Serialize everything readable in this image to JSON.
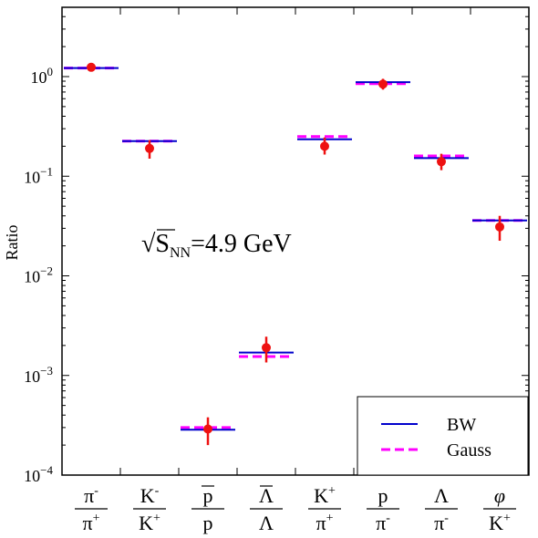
{
  "chart_data": {
    "type": "scatter",
    "title": "",
    "ylabel": "Ratio",
    "xlabel": "",
    "yscale": "log",
    "ylim": [
      0.0001,
      5
    ],
    "yticks": [
      {
        "value": 0.0001,
        "base": "10",
        "exp": "−4"
      },
      {
        "value": 0.001,
        "base": "10",
        "exp": "−3"
      },
      {
        "value": 0.01,
        "base": "10",
        "exp": "−2"
      },
      {
        "value": 0.1,
        "base": "10",
        "exp": "−1"
      },
      {
        "value": 1,
        "base": "10",
        "exp": "0"
      }
    ],
    "categories": [
      {
        "num": "π",
        "num_sup": "-",
        "num_bar": false,
        "den": "π",
        "den_sup": "+",
        "den_bar": false
      },
      {
        "num": "K",
        "num_sup": "-",
        "num_bar": false,
        "den": "K",
        "den_sup": "+",
        "den_bar": false
      },
      {
        "num": "p",
        "num_sup": "",
        "num_bar": true,
        "den": "p",
        "den_sup": "",
        "den_bar": false
      },
      {
        "num": "Λ",
        "num_sup": "",
        "num_bar": true,
        "den": "Λ",
        "den_sup": "",
        "den_bar": false
      },
      {
        "num": "K",
        "num_sup": "+",
        "num_bar": false,
        "den": "π",
        "den_sup": "+",
        "den_bar": false
      },
      {
        "num": "p",
        "num_sup": "",
        "num_bar": false,
        "den": "π",
        "den_sup": "-",
        "den_bar": false
      },
      {
        "num": "Λ",
        "num_sup": "",
        "num_bar": false,
        "den": "π",
        "den_sup": "-",
        "den_bar": false
      },
      {
        "num": "φ",
        "num_sup": "",
        "num_bar": false,
        "den": "K",
        "den_sup": "+",
        "den_bar": false
      }
    ],
    "series": [
      {
        "name": "BW",
        "style": "solid-line",
        "color": "#0000cc",
        "values": [
          1.22,
          0.225,
          0.000285,
          0.0017,
          0.235,
          0.88,
          0.152,
          0.036
        ]
      },
      {
        "name": "Gauss",
        "style": "dashed-line",
        "color": "#ff00ff",
        "values": [
          1.22,
          0.225,
          0.0003,
          0.00155,
          0.25,
          0.85,
          0.16,
          0.036
        ]
      }
    ],
    "data_points": {
      "color": "#ee1111",
      "values": [
        1.24,
        0.19,
        0.00029,
        0.0019,
        0.2,
        0.84,
        0.14,
        0.031
      ],
      "err_low": [
        1.22,
        0.15,
        0.0002,
        0.00135,
        0.165,
        0.74,
        0.115,
        0.0225
      ],
      "err_high": [
        1.27,
        0.23,
        0.00038,
        0.00245,
        0.245,
        0.95,
        0.168,
        0.04
      ]
    },
    "annotation": {
      "sqrt": "√",
      "s": "S",
      "sub": "NN",
      "text": "=4.9 GeV"
    },
    "legend_position": "bottom-right",
    "grid": false
  }
}
